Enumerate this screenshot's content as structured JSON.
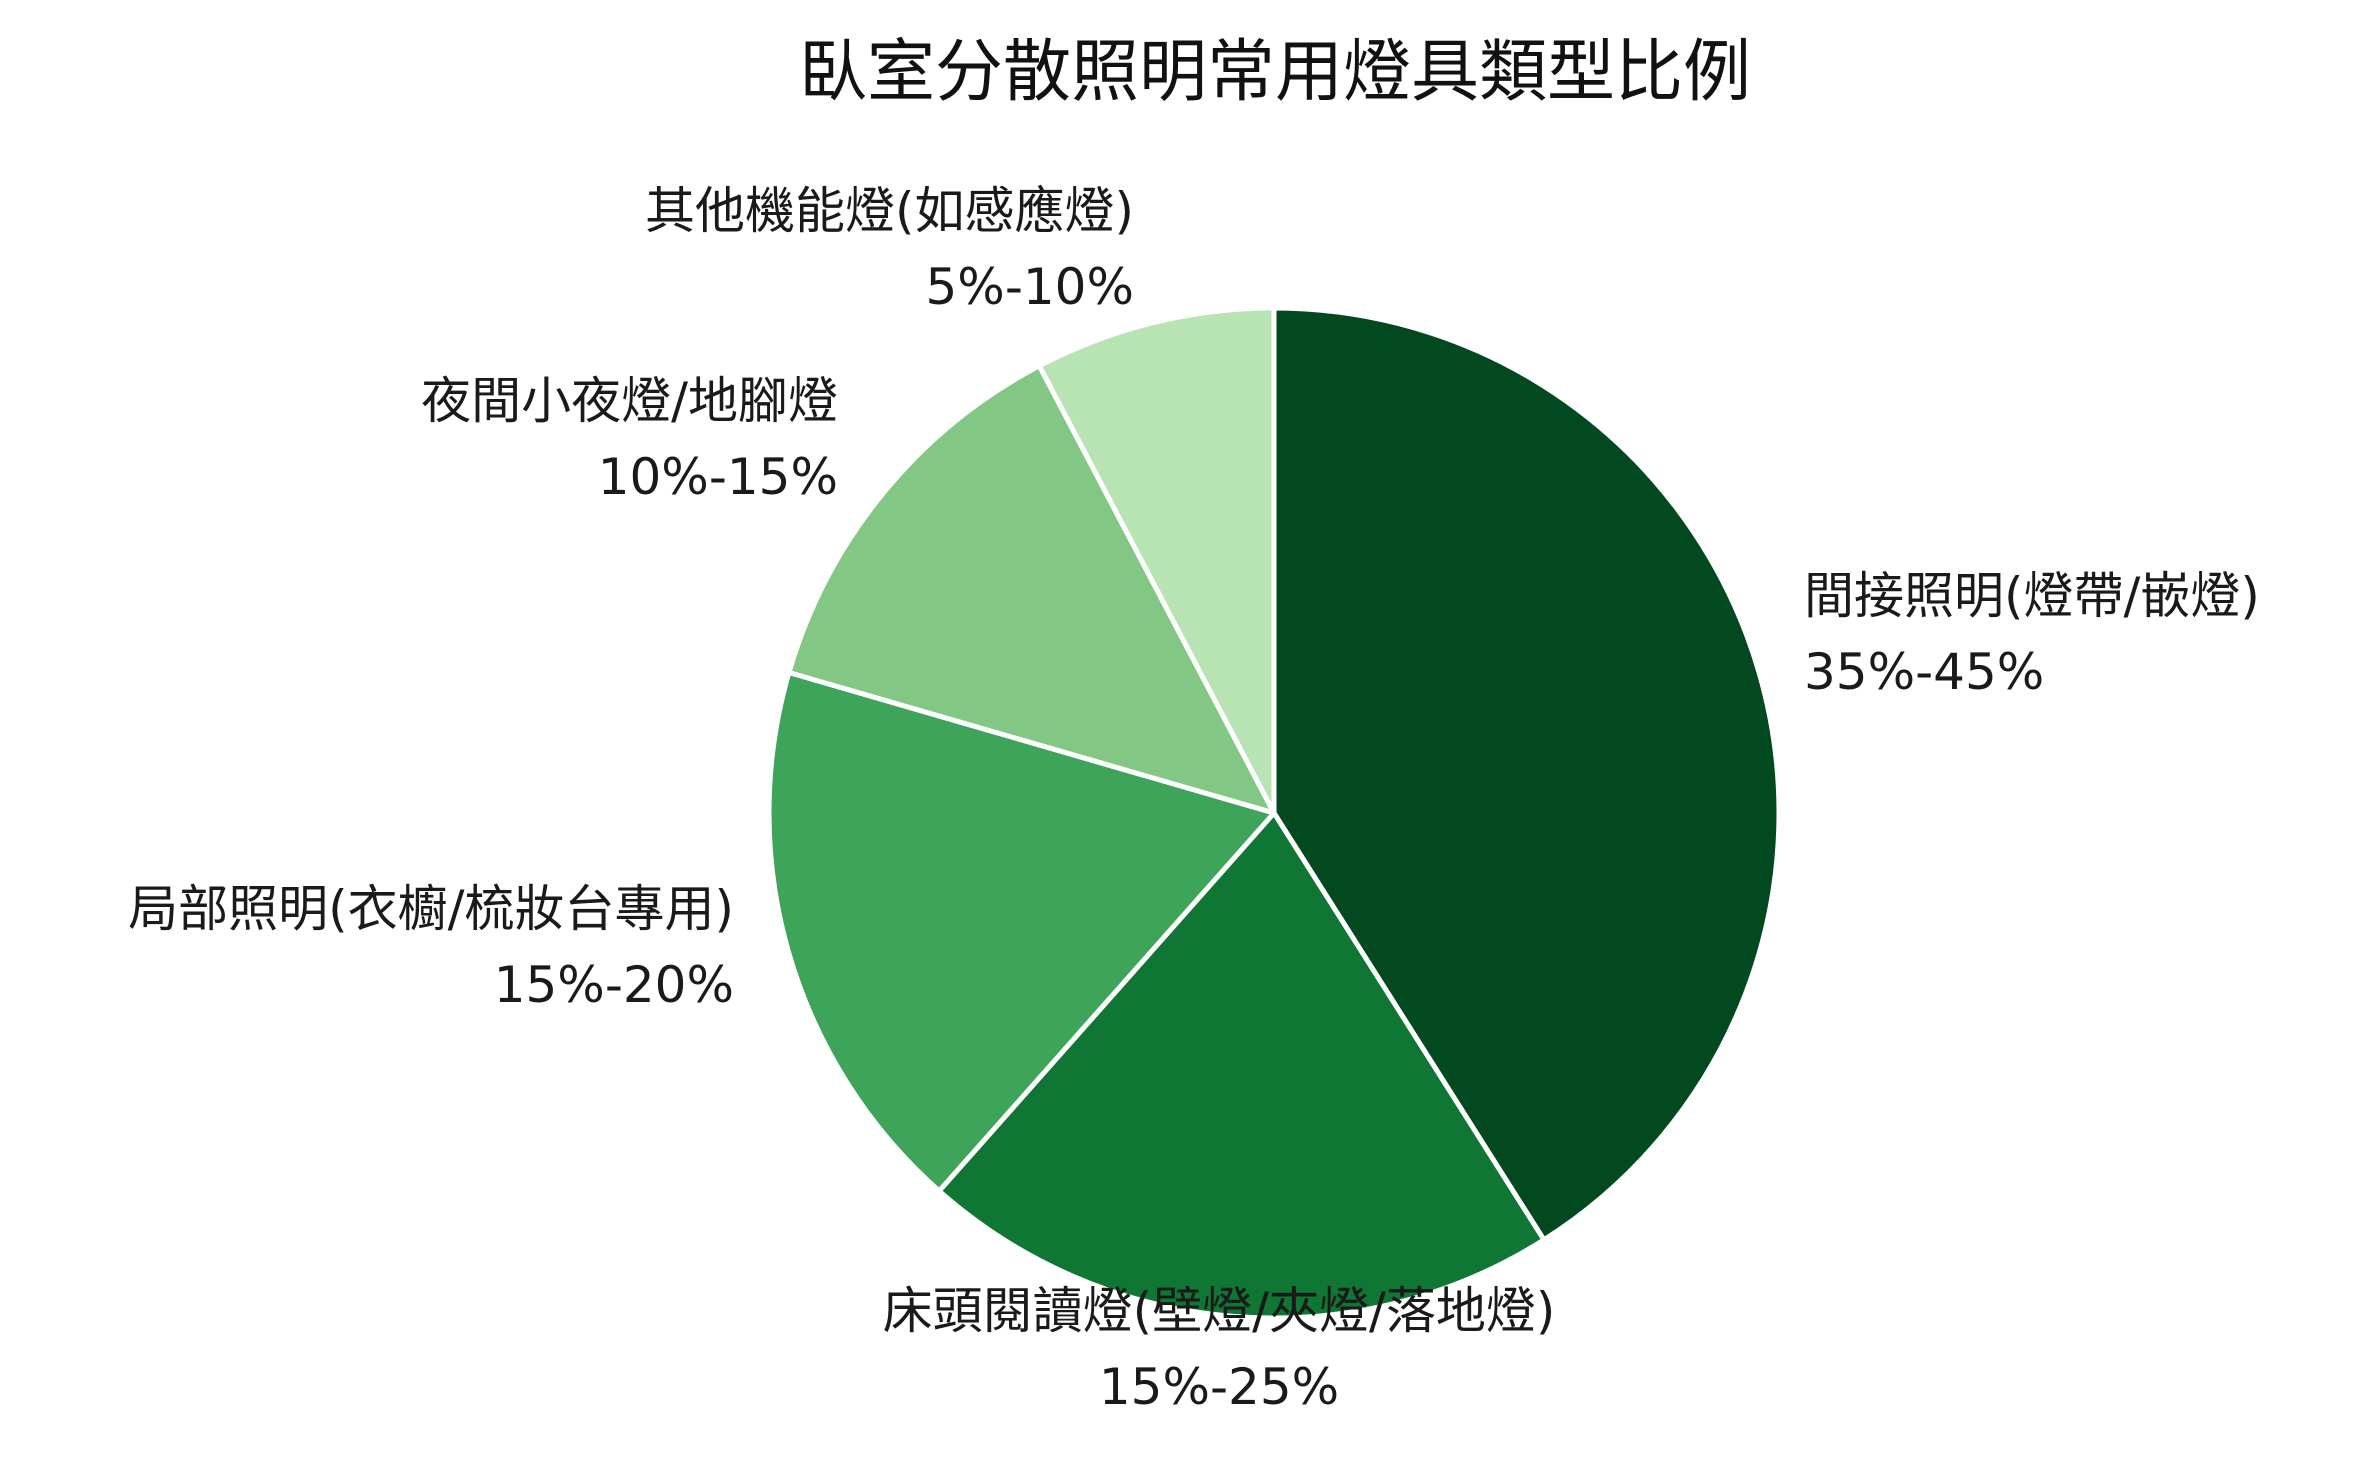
{
  "chart_data": {
    "type": "pie",
    "title": "臥室分散照明常用燈具類型比例",
    "start_angle_deg": 0,
    "direction": "clockwise",
    "slices": [
      {
        "name": "間接照明(燈帶/嵌燈)",
        "range": "35%-45%",
        "value": 40,
        "color": "#02491f"
      },
      {
        "name": "床頭閱讀燈(壁燈/夾燈/落地燈)",
        "range": "15%-25%",
        "value": 20,
        "color": "#0f7634"
      },
      {
        "name": "局部照明(衣櫥/梳妝台專用)",
        "range": "15%-20%",
        "value": 17.5,
        "color": "#3da45a"
      },
      {
        "name": "夜間小夜燈/地腳燈",
        "range": "10%-15%",
        "value": 12.5,
        "color": "#82c884"
      },
      {
        "name": "其他機能燈(如感應燈)",
        "range": "5%-10%",
        "value": 7.5,
        "color": "#b8e3b3"
      }
    ],
    "slice_border_color": "#ffffff",
    "legend": "none"
  }
}
